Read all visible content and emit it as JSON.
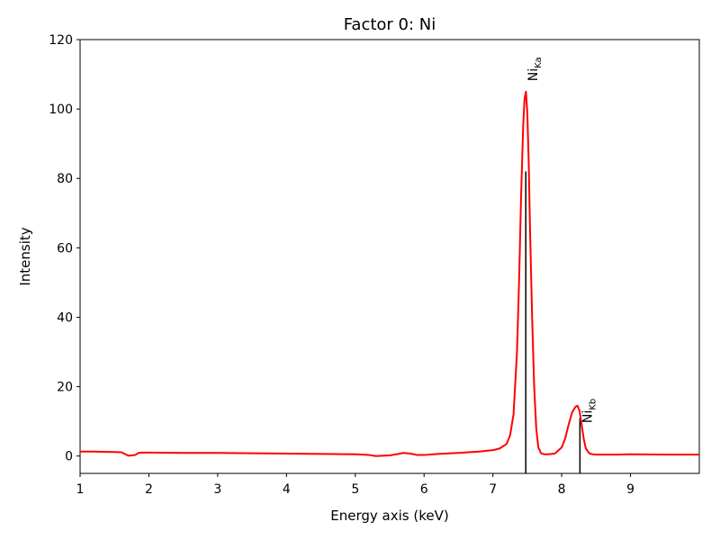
{
  "chart_data": {
    "type": "line",
    "title": "Factor 0: Ni",
    "xlabel": "Energy axis (keV)",
    "ylabel": "Intensity",
    "xlim": [
      1.0,
      10.0
    ],
    "ylim": [
      -5,
      120
    ],
    "xticks": [
      1,
      2,
      3,
      4,
      5,
      6,
      7,
      8,
      9
    ],
    "yticks": [
      0,
      20,
      40,
      60,
      80,
      100,
      120
    ],
    "grid": false,
    "series": [
      {
        "color": "#ff0000",
        "x": [
          1.0,
          1.2,
          1.4,
          1.6,
          1.65,
          1.7,
          1.75,
          1.8,
          1.85,
          1.9,
          2.0,
          2.5,
          3.0,
          3.5,
          4.0,
          4.5,
          5.0,
          5.2,
          5.3,
          5.4,
          5.5,
          5.6,
          5.7,
          5.8,
          5.9,
          6.0,
          6.2,
          6.5,
          6.8,
          7.0,
          7.1,
          7.2,
          7.25,
          7.3,
          7.35,
          7.38,
          7.41,
          7.44,
          7.46,
          7.48,
          7.5,
          7.52,
          7.54,
          7.57,
          7.6,
          7.63,
          7.66,
          7.7,
          7.75,
          7.8,
          7.9,
          8.0,
          8.05,
          8.1,
          8.15,
          8.2,
          8.23,
          8.26,
          8.29,
          8.32,
          8.35,
          8.4,
          8.45,
          8.5,
          8.6,
          8.8,
          9.0,
          9.5,
          10.0
        ],
        "y": [
          1.3,
          1.3,
          1.2,
          1.1,
          0.6,
          0.1,
          0.2,
          0.3,
          0.9,
          1.0,
          1.0,
          0.9,
          0.9,
          0.8,
          0.7,
          0.6,
          0.5,
          0.3,
          0.0,
          0.1,
          0.2,
          0.5,
          0.9,
          0.7,
          0.3,
          0.3,
          0.6,
          0.9,
          1.3,
          1.7,
          2.2,
          3.5,
          6.0,
          12.0,
          30.0,
          50.0,
          75.0,
          95.0,
          103.0,
          105.0,
          99.0,
          85.0,
          65.0,
          40.0,
          20.0,
          8.0,
          2.5,
          0.8,
          0.5,
          0.5,
          0.7,
          2.5,
          5.0,
          9.0,
          12.5,
          14.2,
          14.5,
          13.0,
          9.0,
          5.0,
          2.2,
          0.8,
          0.5,
          0.4,
          0.4,
          0.4,
          0.5,
          0.4,
          0.4
        ]
      }
    ],
    "annotations": [
      {
        "x": 7.478,
        "height": 82,
        "label_main": "Ni",
        "label_sub": "Ka",
        "label_y": 108
      },
      {
        "x": 8.265,
        "height": 11,
        "label_main": "Ni",
        "label_sub": "Kb",
        "label_y": 9.5
      }
    ]
  }
}
